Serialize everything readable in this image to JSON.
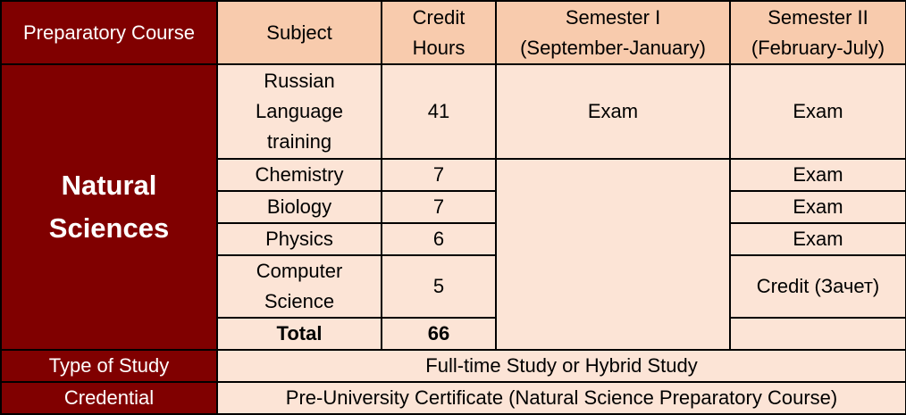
{
  "header": {
    "course": "Preparatory Course",
    "subject": "Subject",
    "credit_hours": [
      "Credit",
      "Hours"
    ],
    "semester1": [
      "Semester I",
      "(September-January)"
    ],
    "semester2": [
      "Semester II",
      "(February-July)"
    ]
  },
  "course_name": [
    "Natural",
    "Sciences"
  ],
  "rows": [
    {
      "subject": [
        "Russian",
        "Language",
        "training"
      ],
      "hours": "41",
      "semester1": "Exam",
      "semester2": "Exam"
    },
    {
      "subject": "Chemistry",
      "hours": "7",
      "semester2": "Exam"
    },
    {
      "subject": "Biology",
      "hours": "7",
      "semester2": "Exam"
    },
    {
      "subject": "Physics",
      "hours": "6",
      "semester2": "Exam"
    },
    {
      "subject": [
        "Computer",
        "Science"
      ],
      "hours": "5",
      "semester2": "Credit (Зачет)"
    }
  ],
  "total": {
    "label": "Total",
    "hours": "66"
  },
  "study_type": {
    "label": "Type of Study",
    "value": "Full-time Study or Hybrid Study"
  },
  "credential": {
    "label": "Credential",
    "value": "Pre-University Certificate (Natural Science Preparatory Course)"
  },
  "colors": {
    "dark_red": "#800000",
    "header_peach": "#f8cbad",
    "cell_peach": "#fce4d6"
  }
}
